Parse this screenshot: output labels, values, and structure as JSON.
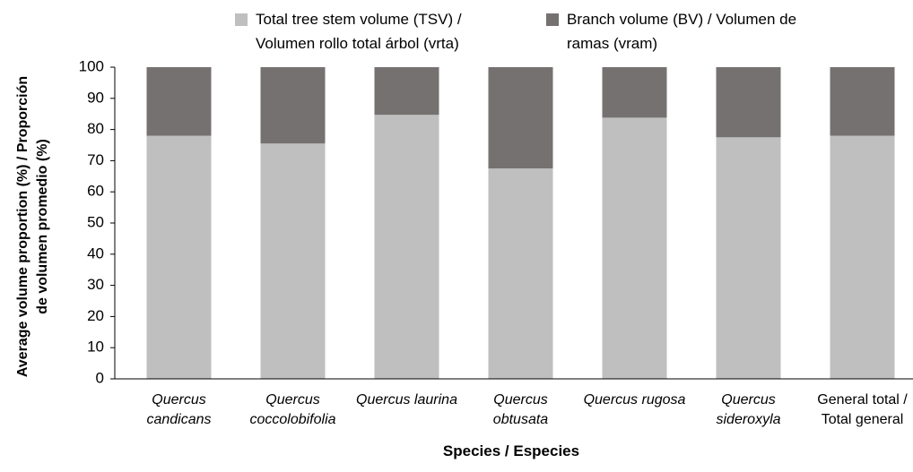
{
  "chart_data": {
    "type": "stacked_bar",
    "xlabel": "Species / Especies",
    "ylabel": "Average volume proportion (%) / Proporción de volumen promedio (%)",
    "categories": [
      "Quercus candicans",
      "Quercus coccolobifolia",
      "Quercus laurina",
      "Quercus obtusata",
      "Quercus rugosa",
      "Quercus sideroxyla",
      "General total / Total general"
    ],
    "series": [
      {
        "name": "Total tree stem volume (TSV) / Volumen rollo total árbol (vrta)",
        "color": "#bfbfbf",
        "values": [
          78,
          75.5,
          84.7,
          67.5,
          83.8,
          77.5,
          78
        ]
      },
      {
        "name": "Branch volume (BV) / Volumen de ramas (vram)",
        "color": "#767171",
        "values": [
          22,
          24.5,
          15.3,
          32.5,
          16.2,
          22.5,
          22
        ]
      }
    ],
    "ylim": [
      0,
      100
    ],
    "yticks": [
      0,
      10,
      20,
      30,
      40,
      50,
      60,
      70,
      80,
      90,
      100
    ],
    "grid": false
  }
}
